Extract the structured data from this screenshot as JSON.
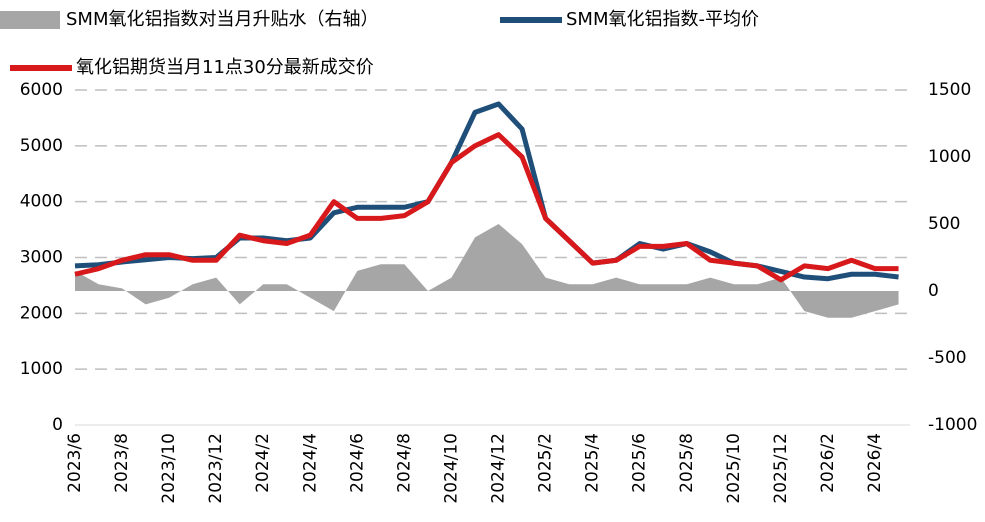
{
  "chart_data": {
    "type": "line",
    "categories": [
      "2023/6",
      null,
      "2023/8",
      null,
      "2023/10",
      null,
      "2023/12",
      null,
      "2024/2",
      null,
      "2024/4",
      null,
      "2024/6",
      null,
      "2024/8",
      null,
      "2024/10",
      null,
      "2024/12",
      null,
      "2025/2",
      null,
      "2025/4",
      null,
      "2025/6",
      null,
      "2025/8",
      null,
      "2025/10",
      null,
      "2025/12",
      null,
      "2026/2",
      null,
      "2026/4",
      null
    ],
    "series": [
      {
        "name": "SMM氧化铝指数对当月升贴水（右轴）",
        "type": "area",
        "axis": "y2",
        "color": "#a6a6a6",
        "values": [
          150,
          50,
          20,
          -100,
          -50,
          50,
          100,
          -100,
          50,
          50,
          -50,
          -150,
          150,
          200,
          200,
          0,
          100,
          400,
          500,
          350,
          100,
          50,
          50,
          100,
          50,
          50,
          50,
          100,
          50,
          50,
          100,
          -150,
          -200,
          -200,
          -150,
          -100
        ]
      },
      {
        "name": "SMM氧化铝指数-平均价",
        "type": "line",
        "color": "#1f4e79",
        "values": [
          2850,
          2870,
          2920,
          2960,
          3000,
          2980,
          3000,
          3350,
          3350,
          3300,
          3350,
          3800,
          3900,
          3900,
          3900,
          4000,
          4700,
          5600,
          5750,
          5300,
          3700,
          3300,
          2900,
          2950,
          3250,
          3150,
          3250,
          3100,
          2900,
          2850,
          2750,
          2650,
          2620,
          2700,
          2700,
          2650
        ]
      },
      {
        "name": "氧化铝期货当月11点30分最新成交价",
        "type": "line",
        "color": "#d7191c",
        "values": [
          2700,
          2800,
          2950,
          3050,
          3050,
          2950,
          2950,
          3400,
          3300,
          3250,
          3400,
          4000,
          3700,
          3700,
          3750,
          4000,
          4700,
          5000,
          5200,
          4800,
          3700,
          3300,
          2900,
          2950,
          3200,
          3200,
          3250,
          2950,
          2900,
          2850,
          2600,
          2850,
          2800,
          2950,
          2800,
          2800
        ]
      }
    ],
    "ylim": [
      0,
      6000
    ],
    "yticks": [
      0,
      1000,
      2000,
      3000,
      4000,
      5000,
      6000
    ],
    "y2lim": [
      -1000,
      1500
    ],
    "y2ticks": [
      -1000,
      -500,
      0,
      500,
      1000,
      1500
    ],
    "grid": true
  }
}
